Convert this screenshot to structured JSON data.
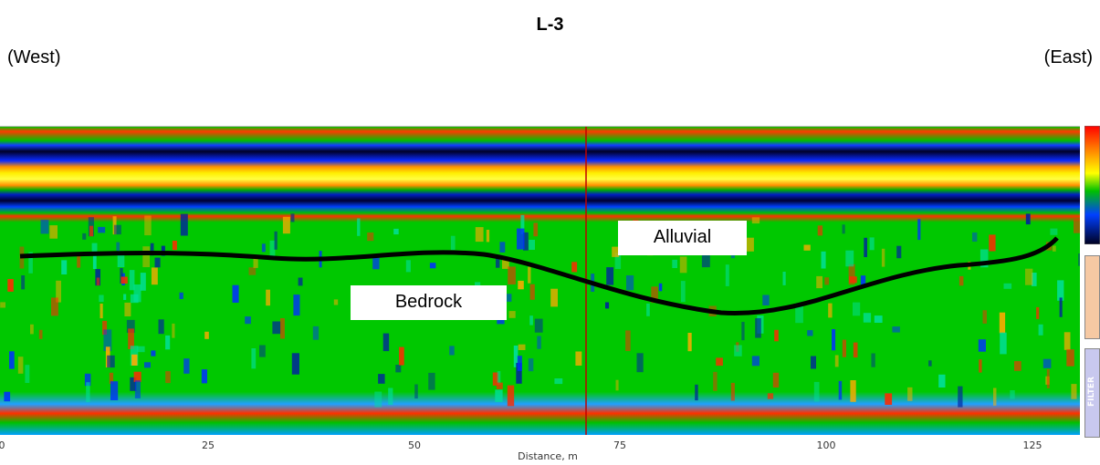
{
  "title": "L-3",
  "west_label": "(West)",
  "east_label": "(East)",
  "labels": {
    "alluvial": "Alluvial",
    "bedrock": "Bedrock"
  },
  "axis": {
    "xlabel": "Distance, m",
    "ticks": [
      "0",
      "25",
      "50",
      "75",
      "100",
      "125"
    ]
  },
  "side_panel": {
    "filter_label": "FILTER"
  },
  "colors": {
    "background": "#00c800",
    "red": "#ff2a00",
    "yellow": "#ffee00",
    "blue": "#0030ff",
    "navy": "#000030",
    "interface_line": "#000000",
    "marker_line": "#c00000"
  }
}
